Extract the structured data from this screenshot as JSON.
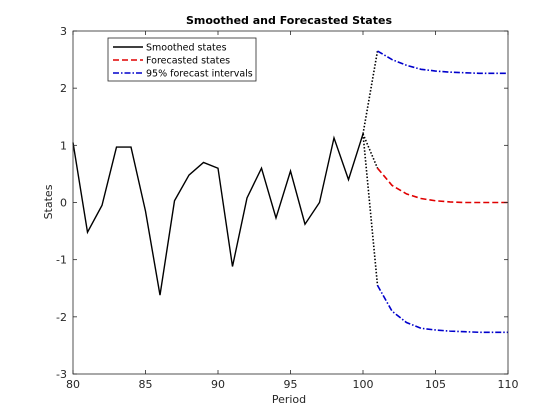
{
  "chart_data": {
    "type": "line",
    "title": "Smoothed and Forecasted States",
    "xlabel": "Period",
    "ylabel": "States",
    "xlim": [
      80,
      110
    ],
    "ylim": [
      -3,
      3
    ],
    "xticks": [
      80,
      85,
      90,
      95,
      100,
      105,
      110
    ],
    "yticks": [
      -3,
      -2,
      -1,
      0,
      1,
      2,
      3
    ],
    "grid": false,
    "legend_position": "top-left",
    "series": [
      {
        "name": "Smoothed states",
        "color": "#000000",
        "style": "solid",
        "x": [
          80,
          81,
          82,
          83,
          84,
          85,
          86,
          87,
          88,
          89,
          90,
          91,
          92,
          93,
          94,
          95,
          96,
          97,
          98,
          99,
          100
        ],
        "values": [
          1.05,
          -0.52,
          -0.05,
          0.97,
          0.97,
          -0.15,
          -1.62,
          0.03,
          0.48,
          0.7,
          0.6,
          -1.12,
          0.08,
          0.6,
          -0.27,
          0.55,
          -0.38,
          0.0,
          1.13,
          0.4,
          1.2
        ]
      },
      {
        "name": "Forecasted states",
        "color": "#e00000",
        "style": "dashed",
        "x": [
          101,
          102,
          103,
          104,
          105,
          106,
          107,
          108,
          109,
          110
        ],
        "values": [
          0.6,
          0.3,
          0.15,
          0.07,
          0.03,
          0.01,
          0.0,
          0.0,
          0.0,
          0.0
        ]
      },
      {
        "name": "95% forecast intervals",
        "color": "#0000cc",
        "style": "dash-dot",
        "x": [
          101,
          102,
          103,
          104,
          105,
          106,
          107,
          108,
          109,
          110
        ],
        "values": [
          2.65,
          2.5,
          2.4,
          2.33,
          2.3,
          2.28,
          2.27,
          2.26,
          2.26,
          2.26
        ]
      },
      {
        "name": "95% forecast intervals (lower)",
        "color": "#0000cc",
        "style": "dash-dot",
        "x": [
          101,
          102,
          103,
          104,
          105,
          106,
          107,
          108,
          109,
          110
        ],
        "values": [
          -1.45,
          -1.9,
          -2.1,
          -2.2,
          -2.23,
          -2.25,
          -2.26,
          -2.27,
          -2.27,
          -2.27
        ]
      }
    ],
    "connectors": [
      {
        "color": "#000000",
        "style": "dotted",
        "x": [
          100,
          101
        ],
        "values": [
          1.2,
          0.6
        ]
      },
      {
        "color": "#000000",
        "style": "dotted",
        "x": [
          100,
          101
        ],
        "values": [
          1.2,
          2.65
        ]
      },
      {
        "color": "#000000",
        "style": "dotted",
        "x": [
          100,
          101
        ],
        "values": [
          1.2,
          -1.45
        ]
      }
    ],
    "legend": [
      {
        "label": "Smoothed states",
        "color": "#000000",
        "style": "solid"
      },
      {
        "label": "Forecasted states",
        "color": "#e00000",
        "style": "dashed"
      },
      {
        "label": "95% forecast intervals",
        "color": "#0000cc",
        "style": "dash-dot"
      }
    ]
  }
}
